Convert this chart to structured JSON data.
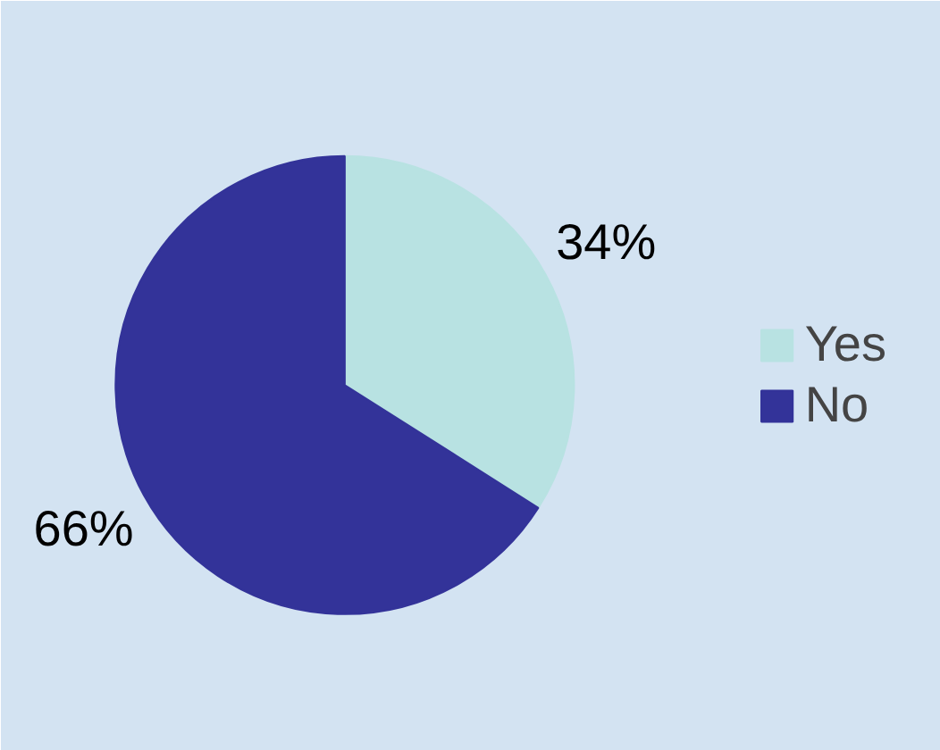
{
  "chart_data": {
    "type": "pie",
    "categories": [
      "Yes",
      "No"
    ],
    "values": [
      34,
      66
    ],
    "colors": [
      "#b8e2e2",
      "#333399"
    ],
    "value_labels": [
      "34%",
      "66%"
    ],
    "legend": "right"
  }
}
